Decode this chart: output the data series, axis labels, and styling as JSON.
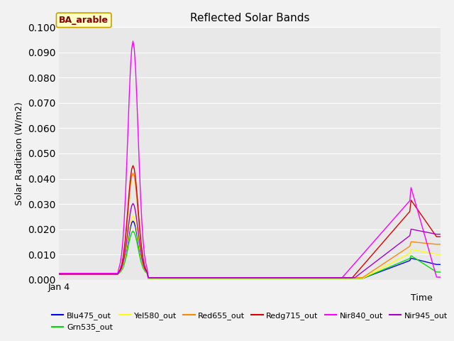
{
  "title": "Reflected Solar Bands",
  "ylabel": "Solar Raditaion (W/m2)",
  "xlabel": "Time",
  "annotation": "BA_arable",
  "ylim": [
    0,
    0.1
  ],
  "yticks": [
    0.0,
    0.01,
    0.02,
    0.03,
    0.04,
    0.05,
    0.06,
    0.07,
    0.08,
    0.09,
    0.1
  ],
  "xstart_label": "Jan 4",
  "series": [
    {
      "name": "Blu475_out",
      "color": "#0000ff"
    },
    {
      "name": "Grn535_out",
      "color": "#00dd00"
    },
    {
      "name": "Yel580_out",
      "color": "#ffff00"
    },
    {
      "name": "Red655_out",
      "color": "#ff8800"
    },
    {
      "name": "Redg715_out",
      "color": "#dd0000"
    },
    {
      "name": "Nir840_out",
      "color": "#ff00ff"
    },
    {
      "name": "Nir945_out",
      "color": "#aa00cc"
    }
  ],
  "bg_color": "#e8e8e8",
  "fig_bg": "#f2f2f2",
  "grid_color": "#ffffff",
  "annotation_fc": "#ffffc8",
  "annotation_ec": "#c8a000",
  "annotation_tc": "#880000"
}
